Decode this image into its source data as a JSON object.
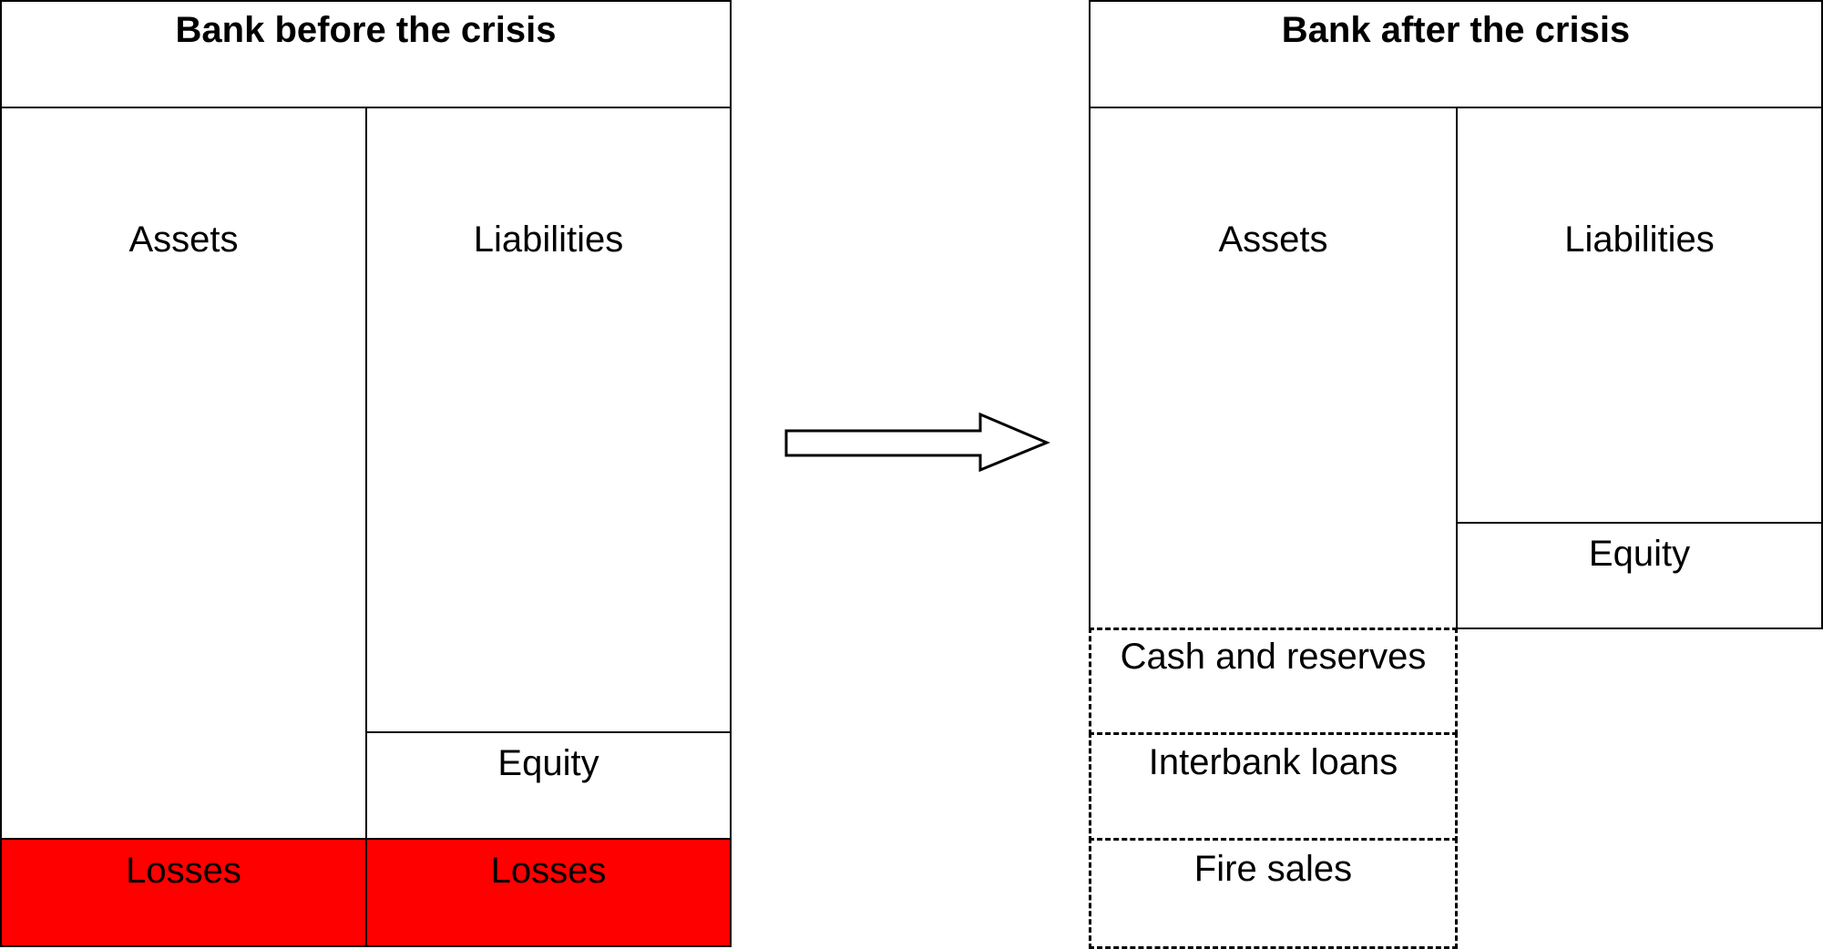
{
  "before": {
    "title": "Bank before the crisis",
    "assets": "Assets",
    "liabilities": "Liabilities",
    "equity": "Equity",
    "losses_assets": "Losses",
    "losses_liabilities": "Losses",
    "loss_color": "#ff0000"
  },
  "after": {
    "title": "Bank after the crisis",
    "assets": "Assets",
    "liabilities": "Liabilities",
    "equity": "Equity",
    "asset_sources": [
      "Cash and reserves",
      "Interbank loans",
      "Fire sales"
    ]
  },
  "arrow": {
    "icon": "right-arrow-icon",
    "direction": "right"
  }
}
